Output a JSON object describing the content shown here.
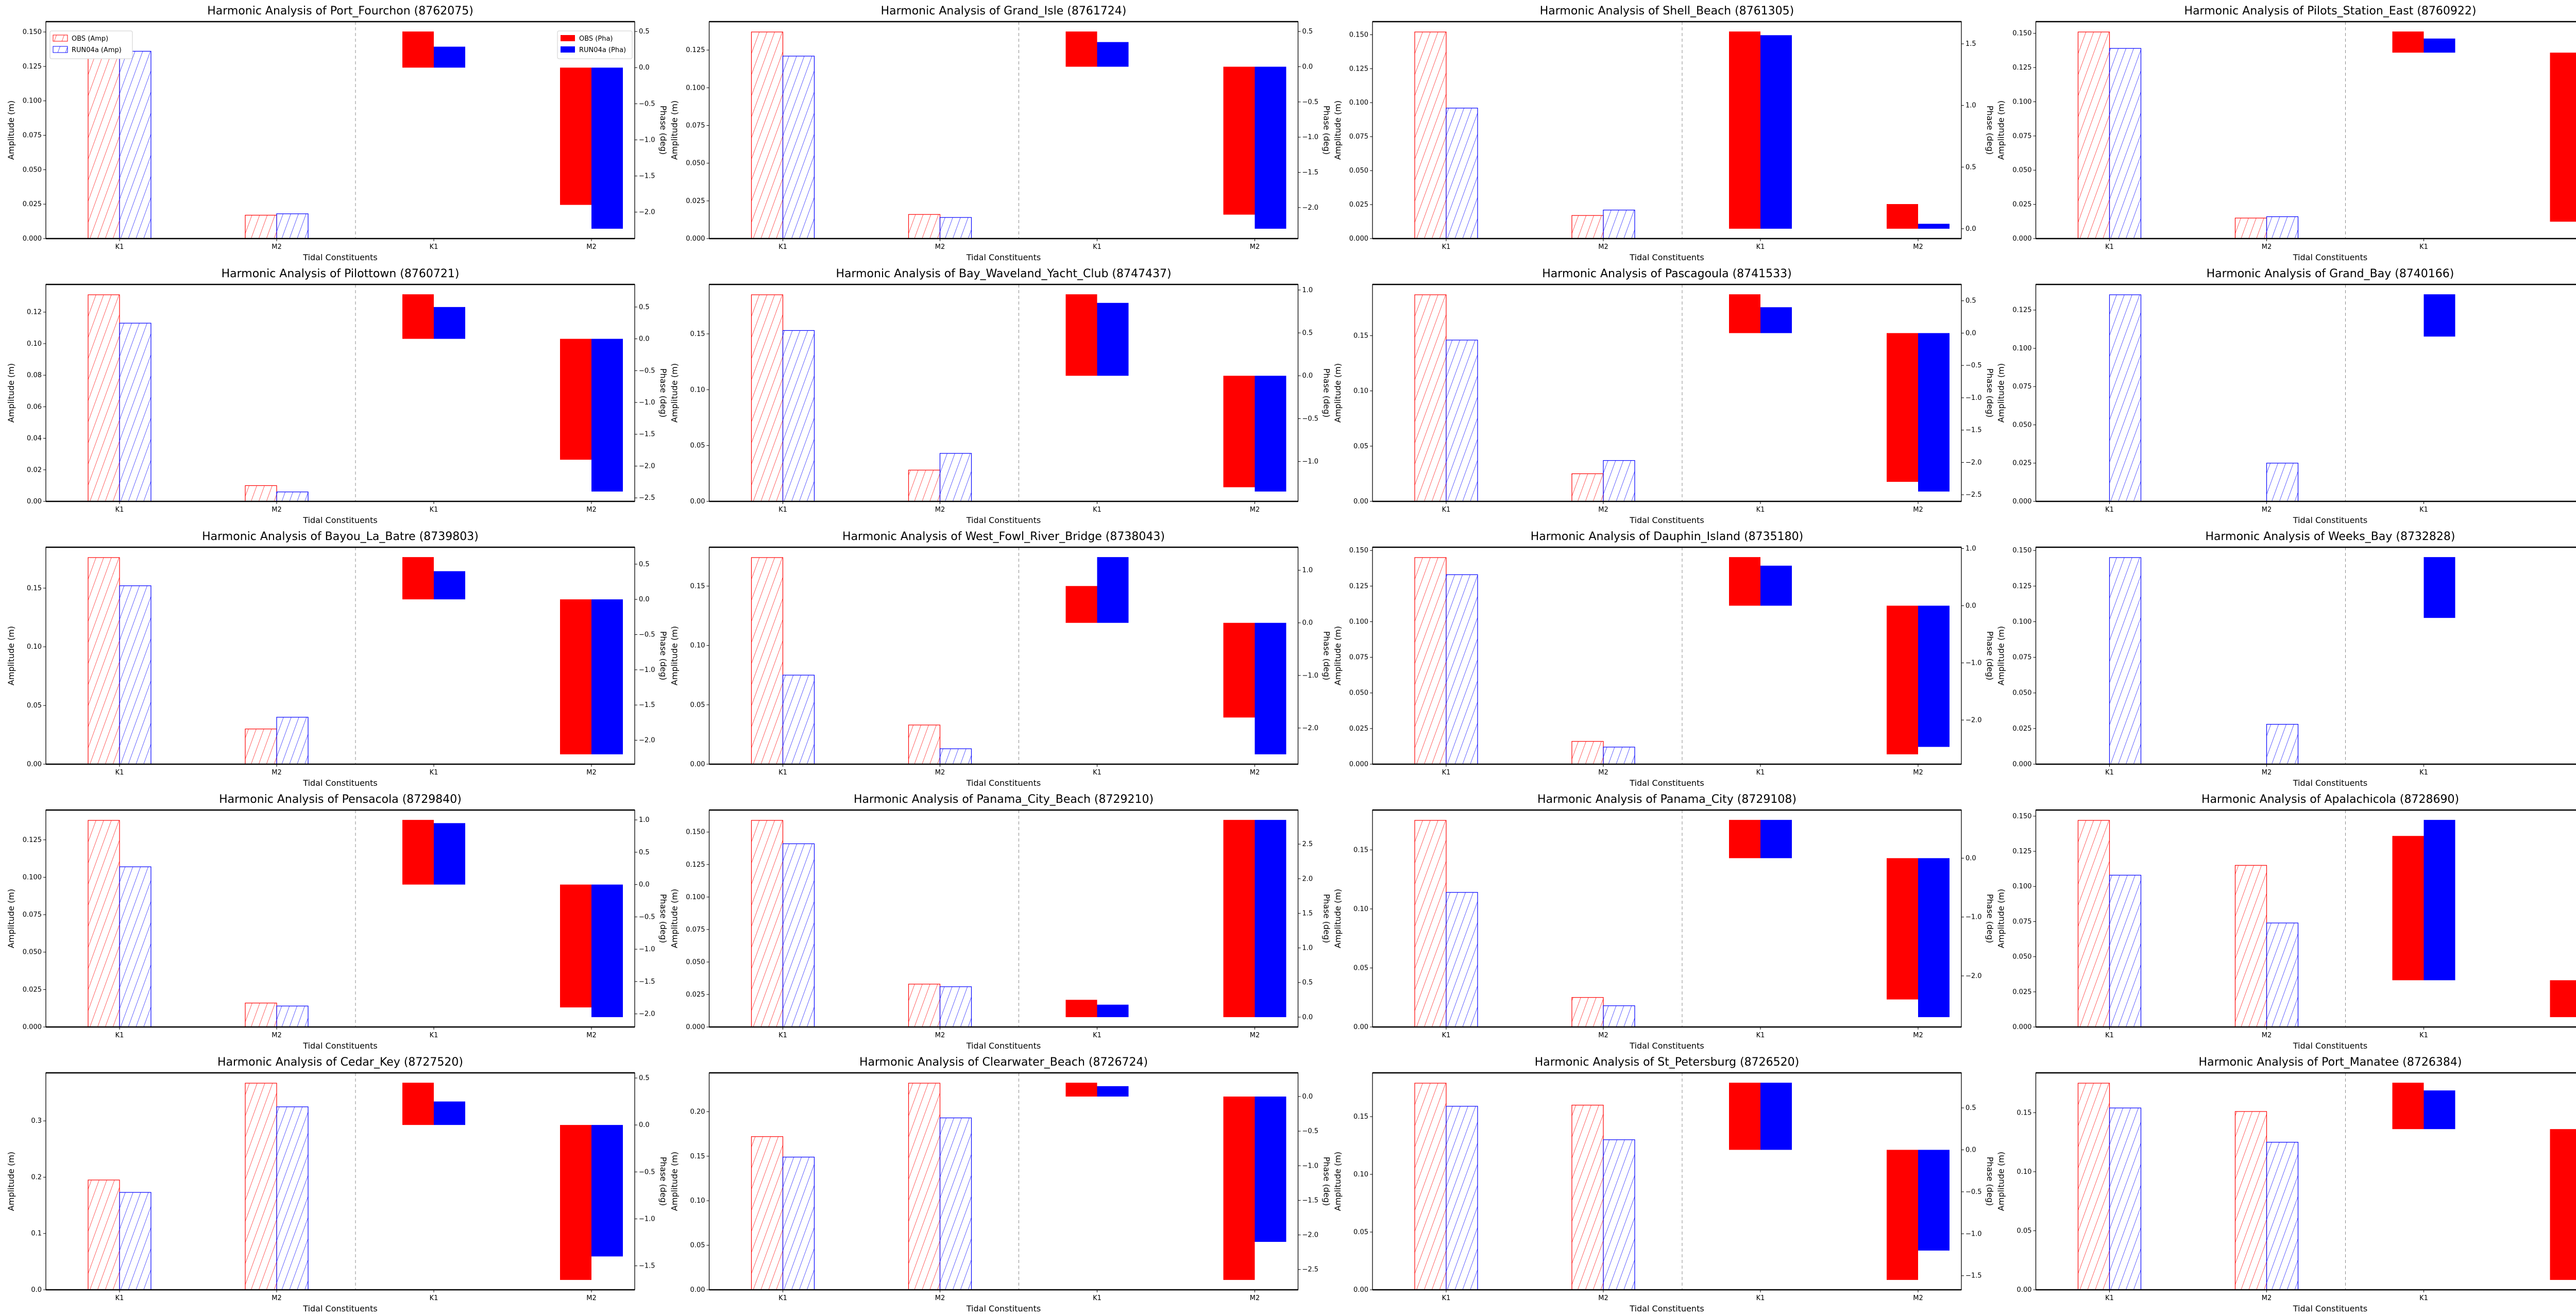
{
  "chart_data": [
    {
      "type": "bar",
      "title": "Harmonic Analysis of Port_Fourchon (8762075)",
      "xlabel": "Tidal Constituents",
      "ylabel": "Amplitude (m)",
      "ylabel_right": "Phase (deg)",
      "categories": [
        "K1",
        "M2"
      ],
      "amp": {
        "OBS": [
          0.15,
          0.017
        ],
        "RUN04a": [
          0.136,
          0.018
        ]
      },
      "pha": {
        "OBS": [
          0.5,
          -1.9
        ],
        "RUN04a": [
          0.29,
          -2.23
        ]
      }
    },
    {
      "type": "bar",
      "title": "Harmonic Analysis of Grand_Isle (8761724)",
      "xlabel": "Tidal Constituents",
      "ylabel": "Amplitude (m)",
      "ylabel_right": "Phase (deg)",
      "categories": [
        "K1",
        "M2"
      ],
      "amp": {
        "OBS": [
          0.137,
          0.016
        ],
        "RUN04a": [
          0.121,
          0.014
        ]
      },
      "pha": {
        "OBS": [
          0.5,
          -2.1
        ],
        "RUN04a": [
          0.35,
          -2.3
        ]
      }
    },
    {
      "type": "bar",
      "title": "Harmonic Analysis of Shell_Beach (8761305)",
      "xlabel": "Tidal Constituents",
      "ylabel": "Amplitude (m)",
      "ylabel_right": "Phase (deg)",
      "categories": [
        "K1",
        "M2"
      ],
      "amp": {
        "OBS": [
          0.152,
          0.017
        ],
        "RUN04a": [
          0.096,
          0.021
        ]
      },
      "pha": {
        "OBS": [
          1.6,
          0.2
        ],
        "RUN04a": [
          1.57,
          0.04
        ]
      }
    },
    {
      "type": "bar",
      "title": "Harmonic Analysis of Pilots_Station_East (8760922)",
      "xlabel": "Tidal Constituents",
      "ylabel": "Amplitude (m)",
      "ylabel_right": "Phase (deg)",
      "categories": [
        "K1",
        "M2"
      ],
      "amp": {
        "OBS": [
          0.151,
          0.015
        ],
        "RUN04a": [
          0.139,
          0.016
        ]
      },
      "pha": {
        "OBS": [
          0.3,
          -2.4
        ],
        "RUN04a": [
          0.2,
          -2.5
        ]
      }
    },
    {
      "type": "bar",
      "title": "Harmonic Analysis of Pilottown (8760721)",
      "xlabel": "Tidal Constituents",
      "ylabel": "Amplitude (m)",
      "ylabel_right": "Phase (deg)",
      "categories": [
        "K1",
        "M2"
      ],
      "amp": {
        "OBS": [
          0.131,
          0.01
        ],
        "RUN04a": [
          0.113,
          0.006
        ]
      },
      "pha": {
        "OBS": [
          0.7,
          -1.9
        ],
        "RUN04a": [
          0.5,
          -2.4
        ]
      }
    },
    {
      "type": "bar",
      "title": "Harmonic Analysis of Bay_Waveland_Yacht_Club (8747437)",
      "xlabel": "Tidal Constituents",
      "ylabel": "Amplitude (m)",
      "ylabel_right": "Phase (deg)",
      "categories": [
        "K1",
        "M2"
      ],
      "amp": {
        "OBS": [
          0.185,
          0.028
        ],
        "RUN04a": [
          0.153,
          0.043
        ]
      },
      "pha": {
        "OBS": [
          0.95,
          -1.3
        ],
        "RUN04a": [
          0.85,
          -1.35
        ]
      }
    },
    {
      "type": "bar",
      "title": "Harmonic Analysis of Pascagoula (8741533)",
      "xlabel": "Tidal Constituents",
      "ylabel": "Amplitude (m)",
      "ylabel_right": "Phase (deg)",
      "categories": [
        "K1",
        "M2"
      ],
      "amp": {
        "OBS": [
          0.187,
          0.025
        ],
        "RUN04a": [
          0.146,
          0.037
        ]
      },
      "pha": {
        "OBS": [
          0.6,
          -2.3
        ],
        "RUN04a": [
          0.4,
          -2.45
        ]
      }
    },
    {
      "type": "bar",
      "title": "Harmonic Analysis of Grand_Bay (8740166)",
      "xlabel": "Tidal Constituents",
      "ylabel": "Amplitude (m)",
      "ylabel_right": "Phase (deg)",
      "categories": [
        "K1",
        "M2"
      ],
      "amp": {
        "OBS": [
          null,
          null
        ],
        "RUN04a": [
          0.135,
          0.025
        ]
      },
      "pha": {
        "OBS": [
          null,
          null
        ],
        "RUN04a": [
          0.6,
          -2.2
        ]
      }
    },
    {
      "type": "bar",
      "title": "Harmonic Analysis of Bayou_La_Batre (8739803)",
      "xlabel": "Tidal Constituents",
      "ylabel": "Amplitude (m)",
      "ylabel_right": "Phase (deg)",
      "categories": [
        "K1",
        "M2"
      ],
      "amp": {
        "OBS": [
          0.176,
          0.03
        ],
        "RUN04a": [
          0.152,
          0.04
        ]
      },
      "pha": {
        "OBS": [
          0.6,
          -2.2
        ],
        "RUN04a": [
          0.4,
          -2.2
        ]
      }
    },
    {
      "type": "bar",
      "title": "Harmonic Analysis of West_Fowl_River_Bridge (8738043)",
      "xlabel": "Tidal Constituents",
      "ylabel": "Amplitude (m)",
      "ylabel_right": "Phase (deg)",
      "categories": [
        "K1",
        "M2"
      ],
      "amp": {
        "OBS": [
          0.174,
          0.033
        ],
        "RUN04a": [
          0.075,
          0.013
        ]
      },
      "pha": {
        "OBS": [
          0.7,
          -1.8
        ],
        "RUN04a": [
          1.25,
          -2.5
        ]
      }
    },
    {
      "type": "bar",
      "title": "Harmonic Analysis of Dauphin_Island (8735180)",
      "xlabel": "Tidal Constituents",
      "ylabel": "Amplitude (m)",
      "ylabel_right": "Phase (deg)",
      "categories": [
        "K1",
        "M2"
      ],
      "amp": {
        "OBS": [
          0.145,
          0.016
        ],
        "RUN04a": [
          0.133,
          0.012
        ]
      },
      "pha": {
        "OBS": [
          0.85,
          -2.6
        ],
        "RUN04a": [
          0.7,
          -2.47
        ]
      }
    },
    {
      "type": "bar",
      "title": "Harmonic Analysis of Weeks_Bay (8732828)",
      "xlabel": "Tidal Constituents",
      "ylabel": "Amplitude (m)",
      "ylabel_right": "Phase (deg)",
      "categories": [
        "K1",
        "M2"
      ],
      "amp": {
        "OBS": [
          null,
          null
        ],
        "RUN04a": [
          0.145,
          0.028
        ]
      },
      "pha": {
        "OBS": [
          null,
          null
        ],
        "RUN04a": [
          0.74,
          -1.66
        ]
      }
    },
    {
      "type": "bar",
      "title": "Harmonic Analysis of Pensacola (8729840)",
      "xlabel": "Tidal Constituents",
      "ylabel": "Amplitude (m)",
      "ylabel_right": "Phase (deg)",
      "categories": [
        "K1",
        "M2"
      ],
      "amp": {
        "OBS": [
          0.138,
          0.016
        ],
        "RUN04a": [
          0.107,
          0.014
        ]
      },
      "pha": {
        "OBS": [
          1.0,
          -1.9
        ],
        "RUN04a": [
          0.95,
          -2.05
        ]
      }
    },
    {
      "type": "bar",
      "title": "Harmonic Analysis of Panama_City_Beach (8729210)",
      "xlabel": "Tidal Constituents",
      "ylabel": "Amplitude (m)",
      "ylabel_right": "Phase (deg)",
      "categories": [
        "K1",
        "M2"
      ],
      "amp": {
        "OBS": [
          0.159,
          0.033
        ],
        "RUN04a": [
          0.141,
          0.031
        ]
      },
      "pha": {
        "OBS": [
          0.25,
          2.85
        ],
        "RUN04a": [
          0.18,
          2.85
        ]
      }
    },
    {
      "type": "bar",
      "title": "Harmonic Analysis of Panama_City (8729108)",
      "xlabel": "Tidal Constituents",
      "ylabel": "Amplitude (m)",
      "ylabel_right": "Phase (deg)",
      "categories": [
        "K1",
        "M2"
      ],
      "amp": {
        "OBS": [
          0.175,
          0.025
        ],
        "RUN04a": [
          0.114,
          0.018
        ]
      },
      "pha": {
        "OBS": [
          0.65,
          -2.4
        ],
        "RUN04a": [
          0.65,
          -2.7
        ]
      }
    },
    {
      "type": "bar",
      "title": "Harmonic Analysis of Apalachicola (8728690)",
      "xlabel": "Tidal Constituents",
      "ylabel": "Amplitude (m)",
      "ylabel_right": "Phase (deg)",
      "categories": [
        "K1",
        "M2"
      ],
      "amp": {
        "OBS": [
          0.147,
          0.115
        ],
        "RUN04a": [
          0.108,
          0.074
        ]
      },
      "pha": {
        "OBS": [
          0.9,
          -0.23
        ],
        "RUN04a": [
          1.0,
          0.8
        ]
      }
    },
    {
      "type": "bar",
      "title": "Harmonic Analysis of Cedar_Key (8727520)",
      "xlabel": "Tidal Constituents",
      "ylabel": "Amplitude (m)",
      "ylabel_right": "Phase (deg)",
      "categories": [
        "K1",
        "M2"
      ],
      "amp": {
        "OBS": [
          0.195,
          0.367
        ],
        "RUN04a": [
          0.173,
          0.325
        ]
      },
      "pha": {
        "OBS": [
          0.45,
          -1.65
        ],
        "RUN04a": [
          0.25,
          -1.4
        ]
      }
    },
    {
      "type": "bar",
      "title": "Harmonic Analysis of Clearwater_Beach (8726724)",
      "xlabel": "Tidal Constituents",
      "ylabel": "Amplitude (m)",
      "ylabel_right": "Phase (deg)",
      "categories": [
        "K1",
        "M2"
      ],
      "amp": {
        "OBS": [
          0.172,
          0.232
        ],
        "RUN04a": [
          0.149,
          0.193
        ]
      },
      "pha": {
        "OBS": [
          0.2,
          -2.65
        ],
        "RUN04a": [
          0.15,
          -2.1
        ]
      }
    },
    {
      "type": "bar",
      "title": "Harmonic Analysis of St_Petersburg (8726520)",
      "xlabel": "Tidal Constituents",
      "ylabel": "Amplitude (m)",
      "ylabel_right": "Phase (deg)",
      "categories": [
        "K1",
        "M2"
      ],
      "amp": {
        "OBS": [
          0.179,
          0.16
        ],
        "RUN04a": [
          0.159,
          0.13
        ]
      },
      "pha": {
        "OBS": [
          0.8,
          -1.55
        ],
        "RUN04a": [
          0.8,
          -1.2
        ]
      }
    },
    {
      "type": "bar",
      "title": "Harmonic Analysis of Port_Manatee (8726384)",
      "xlabel": "Tidal Constituents",
      "ylabel": "Amplitude (m)",
      "ylabel_right": "Phase (deg)",
      "categories": [
        "K1",
        "M2"
      ],
      "amp": {
        "OBS": [
          0.175,
          0.151
        ],
        "RUN04a": [
          0.154,
          0.125
        ]
      },
      "pha": {
        "OBS": [
          0.6,
          -1.95
        ],
        "RUN04a": [
          0.5,
          -1.45
        ]
      }
    }
  ],
  "legend": {
    "amp": [
      "OBS (Amp)",
      "RUN04a (Amp)"
    ],
    "pha": [
      "OBS (Pha)",
      "RUN04a (Pha)"
    ],
    "placement_amp": "top-left",
    "placement_pha": "top-right"
  },
  "colors": {
    "OBS": "#ff0000",
    "RUN04a": "#0000ff"
  },
  "grid": false
}
